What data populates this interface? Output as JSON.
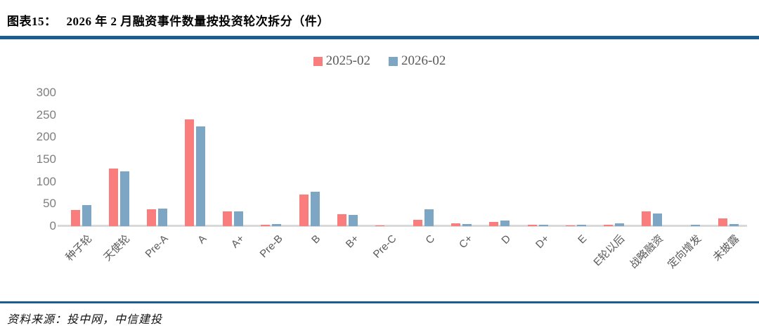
{
  "header": {
    "title_label": "图表15：",
    "title_text": "2026 年 2 月融资事件数量按投资轮次拆分（件）"
  },
  "chart_data": {
    "type": "bar",
    "title": "2026 年 2 月融资事件数量按投资轮次拆分（件）",
    "categories": [
      "种子轮",
      "天使轮",
      "Pre-A",
      "A",
      "A+",
      "Pre-B",
      "B",
      "B+",
      "Pre-C",
      "C",
      "C+",
      "D",
      "D+",
      "E",
      "E轮以后",
      "战略融资",
      "定向增发",
      "未披露"
    ],
    "series": [
      {
        "name": "2025-02",
        "color": "#f97d7d",
        "values": [
          37,
          130,
          38,
          240,
          33,
          4,
          71,
          27,
          2,
          15,
          7,
          9,
          3,
          2,
          4,
          34,
          0,
          18
        ]
      },
      {
        "name": "2026-02",
        "color": "#7da6c5",
        "values": [
          48,
          124,
          40,
          225,
          34,
          5,
          77,
          26,
          0,
          38,
          5,
          12,
          4,
          3,
          6,
          29,
          4,
          5
        ]
      }
    ],
    "xlabel": "",
    "ylabel": "",
    "ylim": [
      0,
      300
    ],
    "yticks": [
      0,
      50,
      100,
      150,
      200,
      250,
      300
    ],
    "grid": false,
    "legend_position": "top-center"
  },
  "footer": {
    "source": "资料来源：投中网，中信建投"
  },
  "colors": {
    "accent_rule": "#1b5e8f",
    "axis_text": "#7f7f7f",
    "category_text": "#595959",
    "baseline": "#d9d9d9",
    "series_2025": "#f97d7d",
    "series_2026": "#7da6c5"
  }
}
